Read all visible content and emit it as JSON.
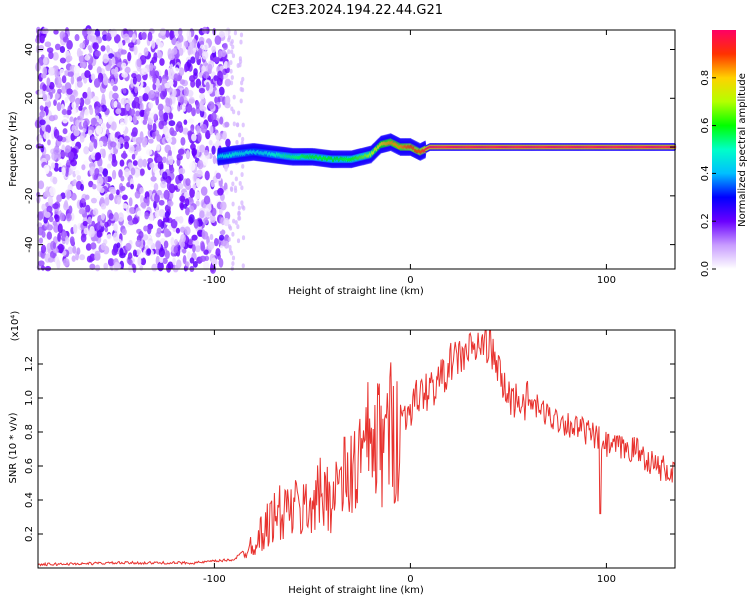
{
  "title": "C2E3.2024.194.22.44.G21",
  "chart_data": [
    {
      "type": "heatmap",
      "xlabel": "Height of straight line (km)",
      "ylabel": "Frequency (Hz)",
      "xlim": [
        -190,
        135
      ],
      "ylim": [
        -50,
        48
      ],
      "x_ticks": [
        -100,
        0,
        100
      ],
      "y_ticks": [
        -40,
        -20,
        0,
        20,
        40
      ],
      "colorbar": {
        "label": "Normalized spectral amplitude",
        "range": [
          0.0,
          1.0
        ],
        "ticks": [
          0.0,
          0.2,
          0.4,
          0.6,
          0.8
        ],
        "colors": [
          "#ffffff",
          "#c89cff",
          "#6a00ff",
          "#0000ff",
          "#00bfff",
          "#00ffc8",
          "#00ff00",
          "#b4ff00",
          "#ffd200",
          "#ff3200",
          "#ff0064"
        ]
      },
      "signal_track": {
        "x": [
          -98,
          -90,
          -80,
          -70,
          -60,
          -50,
          -40,
          -30,
          -20,
          -15,
          -10,
          -5,
          0,
          5,
          10,
          20,
          40,
          60,
          80,
          100,
          120,
          135
        ],
        "freq": [
          -4,
          -3,
          -2,
          -3,
          -4,
          -4,
          -5,
          -5,
          -3,
          1,
          2,
          0,
          0,
          -2,
          0,
          0,
          0,
          0,
          0,
          0,
          0,
          0
        ],
        "amplitude": [
          0.45,
          0.5,
          0.45,
          0.5,
          0.55,
          0.6,
          0.6,
          0.6,
          0.7,
          0.8,
          0.85,
          0.85,
          0.9,
          0.9,
          1.0,
          1.0,
          1.0,
          1.0,
          1.0,
          1.0,
          1.0,
          1.0
        ]
      }
    },
    {
      "type": "line",
      "xlabel": "Height of straight line (km)",
      "ylabel": "SNR (10 * v/v)",
      "y_multiplier": "(x10⁴)",
      "xlim": [
        -190,
        135
      ],
      "ylim": [
        0,
        1.4
      ],
      "x_ticks": [
        -100,
        0,
        100
      ],
      "y_ticks": [
        0.2,
        0.4,
        0.6,
        0.8,
        1.0,
        1.2
      ],
      "series": [
        {
          "color": "#e8322e",
          "x": [
            -190,
            -150,
            -110,
            -90,
            -80,
            -75,
            -70,
            -60,
            -55,
            -50,
            -40,
            -30,
            -25,
            -20,
            -15,
            -10,
            -5,
            0,
            5,
            10,
            15,
            20,
            30,
            35,
            40,
            45,
            50,
            60,
            70,
            80,
            90,
            97,
            100,
            110,
            115,
            120,
            125,
            130,
            135
          ],
          "y": [
            0.02,
            0.03,
            0.03,
            0.05,
            0.15,
            0.22,
            0.3,
            0.35,
            0.33,
            0.4,
            0.45,
            0.55,
            0.65,
            0.75,
            0.72,
            0.8,
            0.85,
            0.95,
            1.02,
            1.05,
            1.1,
            1.2,
            1.28,
            1.3,
            1.33,
            1.15,
            1.0,
            0.98,
            0.9,
            0.85,
            0.8,
            0.75,
            0.72,
            0.7,
            0.7,
            0.65,
            0.6,
            0.58,
            0.55
          ]
        }
      ]
    }
  ]
}
